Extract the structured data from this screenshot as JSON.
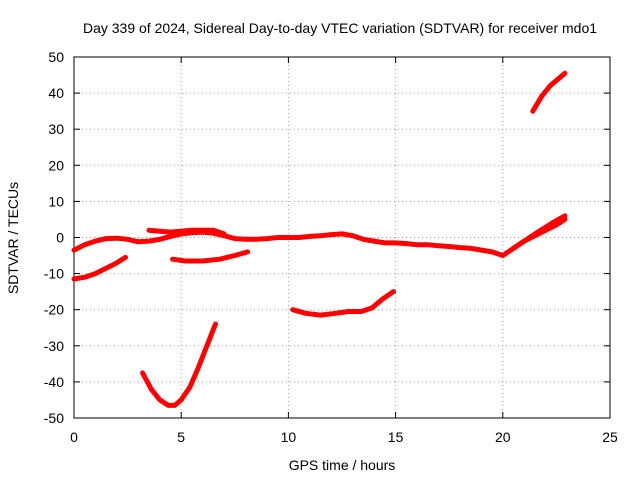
{
  "chart_data": {
    "type": "line",
    "title": "Day 339 of 2024, Sidereal Day-to-day VTEC variation (SDTVAR) for receiver mdo1",
    "xlabel": "GPS time / hours",
    "ylabel": "SDTVAR / TECUs",
    "xlim": [
      0,
      25
    ],
    "ylim": [
      -50,
      50
    ],
    "xticks": [
      0,
      5,
      10,
      15,
      20,
      25
    ],
    "yticks": [
      -50,
      -40,
      -30,
      -20,
      -10,
      0,
      10,
      20,
      30,
      40,
      50
    ],
    "grid": true,
    "series_color": "#ff0000",
    "series": [
      {
        "name": "trace-1",
        "x": [
          0,
          0.5,
          1,
          1.5,
          2,
          2.5,
          3,
          3.5,
          4,
          4.5,
          5,
          5.5,
          6,
          6.5,
          7,
          7.5,
          8,
          8.5,
          9,
          9.5,
          10,
          10.5,
          11,
          11.5,
          12,
          12.5,
          13,
          13.5,
          14,
          14.5,
          15,
          15.5,
          16,
          16.5,
          17,
          17.5,
          18,
          18.5,
          19,
          19.5,
          20,
          20.5,
          21,
          21.5,
          22,
          22.5,
          22.9
        ],
        "y": [
          -3.5,
          -2,
          -1,
          -0.3,
          -0.2,
          -0.5,
          -1.2,
          -1,
          -0.5,
          0.3,
          1,
          1.3,
          1.5,
          1.2,
          0.5,
          -0.3,
          -0.5,
          -0.5,
          -0.3,
          0,
          0,
          0,
          0.3,
          0.5,
          0.8,
          1,
          0.5,
          -0.5,
          -1,
          -1.5,
          -1.5,
          -1.7,
          -2,
          -2,
          -2.3,
          -2.5,
          -2.8,
          -3,
          -3.5,
          -4,
          -5,
          -3,
          -1,
          0.5,
          2,
          3.5,
          5
        ]
      },
      {
        "name": "trace-2",
        "x": [
          3.5,
          4.5,
          5.5,
          6.5,
          7
        ],
        "y": [
          2,
          1.5,
          2,
          2,
          1
        ]
      },
      {
        "name": "trace-3",
        "x": [
          20.5,
          21.5,
          22.3,
          22.9
        ],
        "y": [
          -3,
          1,
          4,
          6
        ]
      },
      {
        "name": "trace-4",
        "x": [
          0,
          0.5,
          1,
          1.5,
          2,
          2.4
        ],
        "y": [
          -11.5,
          -11,
          -10,
          -8.5,
          -7,
          -5.5
        ]
      },
      {
        "name": "trace-5",
        "x": [
          4.6,
          5.2,
          6,
          6.8,
          7.5,
          8.1
        ],
        "y": [
          -6,
          -6.5,
          -6.5,
          -6,
          -5,
          -4
        ]
      },
      {
        "name": "trace-6",
        "x": [
          3.2,
          3.6,
          4,
          4.4,
          4.7,
          5,
          5.4,
          5.8,
          6.2,
          6.6
        ],
        "y": [
          -37.5,
          -42,
          -45,
          -46.5,
          -46.5,
          -45,
          -41.5,
          -36,
          -30,
          -24
        ]
      },
      {
        "name": "trace-7",
        "x": [
          10.2,
          10.8,
          11.5,
          12.2,
          12.8,
          13.4,
          13.9,
          14.4,
          14.9
        ],
        "y": [
          -20,
          -21,
          -21.5,
          -21,
          -20.5,
          -20.5,
          -19.5,
          -17,
          -15
        ]
      },
      {
        "name": "trace-8",
        "x": [
          21.4,
          21.8,
          22.2,
          22.6,
          22.9
        ],
        "y": [
          35,
          39,
          42,
          44,
          45.5
        ]
      }
    ]
  }
}
